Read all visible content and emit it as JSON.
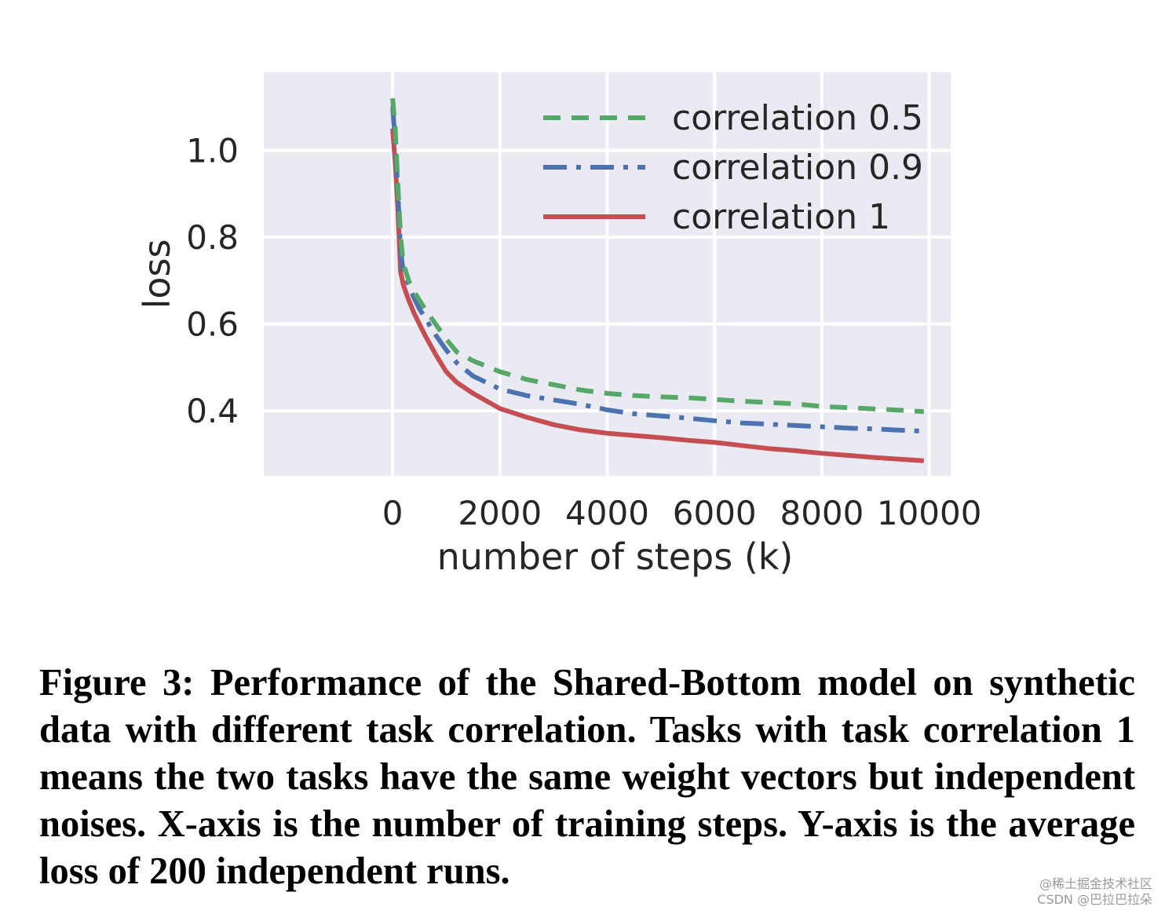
{
  "chart_data": {
    "type": "line",
    "title": "",
    "xlabel": "number of steps (k)",
    "ylabel": "loss",
    "xlim": [
      -2400,
      10400
    ],
    "ylim": [
      0.25,
      1.18
    ],
    "xticks": [
      0,
      2000,
      4000,
      6000,
      8000,
      10000
    ],
    "yticks": [
      0.4,
      0.6,
      0.8,
      1.0
    ],
    "xtick_labels": [
      "0",
      "2000",
      "4000",
      "6000",
      "8000",
      "10000"
    ],
    "ytick_labels": [
      "0.4",
      "0.6",
      "0.8",
      "1.0"
    ],
    "grid": true,
    "legend_position": "top-right",
    "series": [
      {
        "name": "correlation 0.5",
        "color": "#55a868",
        "style": "dashed",
        "x": [
          0,
          50,
          100,
          150,
          200,
          300,
          400,
          500,
          600,
          800,
          1000,
          1200,
          1500,
          2000,
          2500,
          3000,
          3500,
          4000,
          4500,
          5000,
          5500,
          6000,
          6500,
          7000,
          7500,
          8000,
          8500,
          9000,
          9500,
          9900
        ],
        "y": [
          1.12,
          1.05,
          0.92,
          0.8,
          0.74,
          0.7,
          0.675,
          0.655,
          0.635,
          0.6,
          0.565,
          0.535,
          0.515,
          0.49,
          0.472,
          0.46,
          0.448,
          0.44,
          0.435,
          0.432,
          0.43,
          0.426,
          0.422,
          0.419,
          0.416,
          0.41,
          0.407,
          0.404,
          0.401,
          0.398
        ]
      },
      {
        "name": "correlation 0.9",
        "color": "#4c72b0",
        "style": "dashdot",
        "x": [
          0,
          50,
          100,
          150,
          200,
          300,
          400,
          500,
          600,
          800,
          1000,
          1200,
          1500,
          2000,
          2500,
          3000,
          3500,
          4000,
          4500,
          5000,
          5500,
          6000,
          6500,
          7000,
          7500,
          8000,
          8500,
          9000,
          9500,
          9900
        ],
        "y": [
          1.1,
          1.02,
          0.9,
          0.77,
          0.72,
          0.69,
          0.66,
          0.635,
          0.615,
          0.575,
          0.54,
          0.51,
          0.48,
          0.45,
          0.435,
          0.425,
          0.415,
          0.402,
          0.393,
          0.388,
          0.383,
          0.377,
          0.372,
          0.369,
          0.366,
          0.363,
          0.36,
          0.358,
          0.355,
          0.353
        ]
      },
      {
        "name": "correlation 1",
        "color": "#c44e52",
        "style": "solid",
        "x": [
          0,
          50,
          100,
          150,
          200,
          300,
          400,
          500,
          600,
          800,
          1000,
          1200,
          1500,
          2000,
          2500,
          3000,
          3500,
          4000,
          4500,
          5000,
          5500,
          6000,
          6500,
          7000,
          7500,
          8000,
          8500,
          9000,
          9500,
          9900
        ],
        "y": [
          1.05,
          0.97,
          0.86,
          0.72,
          0.69,
          0.655,
          0.625,
          0.6,
          0.575,
          0.53,
          0.49,
          0.465,
          0.44,
          0.405,
          0.385,
          0.368,
          0.356,
          0.348,
          0.343,
          0.338,
          0.332,
          0.327,
          0.32,
          0.313,
          0.308,
          0.302,
          0.297,
          0.292,
          0.288,
          0.285
        ]
      }
    ]
  },
  "caption": {
    "text": "Figure 3: Performance of the Shared-Bottom model on synthetic data with different task correlation. Tasks with task correlation 1 means the two tasks have the same weight vectors but independent noises. X-axis is the number of training steps. Y-axis is the average loss of 200 independent runs."
  },
  "watermark": {
    "line1": "@稀土掘金技术社区",
    "line2": "CSDN @巴拉巴拉朵"
  }
}
